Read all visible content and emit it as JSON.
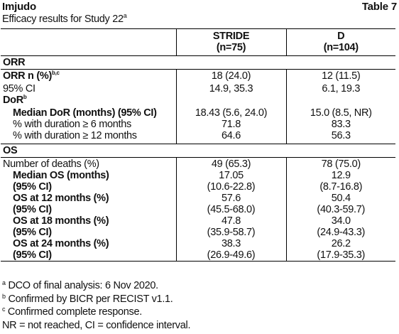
{
  "brand": "Imjudo",
  "table_label": "Table 7",
  "subtitle": "Efficacy results for Study 22",
  "subtitle_note": "a",
  "columns": [
    {
      "name": "STRIDE",
      "n": "(n=75)"
    },
    {
      "name": "D",
      "n": "(n=104)"
    }
  ],
  "sections": {
    "orr": "ORR",
    "os": "OS"
  },
  "orr_rows": {
    "orr_n": {
      "label": "ORR n (%)",
      "sup": "b,c",
      "stride": "18 (24.0)",
      "d": "12 (11.5)"
    },
    "ci": {
      "label": "95% CI",
      "stride": "14.9, 35.3",
      "d": "6.1, 19.3"
    },
    "dor": {
      "label": "DoR",
      "sup": "b"
    },
    "median_dor": {
      "label": "Median DoR (months) (95% CI)",
      "stride": "18.43 (5.6, 24.0)",
      "d": "15.0 (8.5, NR)"
    },
    "dur6": {
      "label": "% with duration ≥ 6 months",
      "stride": "71.8",
      "d": "83.3"
    },
    "dur12": {
      "label": "% with duration ≥ 12 months",
      "stride": "64.6",
      "d": "56.3"
    }
  },
  "os_rows": [
    {
      "label": "Number of deaths (%)",
      "stride": "49 (65.3)",
      "d": "78 (75.0)"
    },
    {
      "label": "Median OS (months)",
      "stride": "17.05",
      "d": "12.9"
    },
    {
      "label": "(95% CI)",
      "stride": "(10.6-22.8)",
      "d": "(8.7-16.8)"
    },
    {
      "label": "OS at 12 months (%)",
      "stride": "57.6",
      "d": "50.4"
    },
    {
      "label": "(95% CI)",
      "stride": "(45.5-68.0)",
      "d": "(40.3-59.7)"
    },
    {
      "label": "OS at 18 months (%)",
      "stride": "47.8",
      "d": "34.0"
    },
    {
      "label": "(95% CI)",
      "stride": "(35.9-58.7)",
      "d": "(24.9-43.3)"
    },
    {
      "label": "OS at 24 months (%)",
      "stride": "38.3",
      "d": "26.2"
    },
    {
      "label": "(95% CI)",
      "stride": "(26.9-49.6)",
      "d": "(17.9-35.3)"
    }
  ],
  "footnotes": [
    {
      "mark": "a",
      "text": " DCO of final analysis: 6 Nov 2020."
    },
    {
      "mark": "b",
      "text": " Confirmed by BICR per RECIST v1.1."
    },
    {
      "mark": "c",
      "text": " Confirmed complete response."
    },
    {
      "mark": "",
      "text": "NR = not reached, CI = confidence interval."
    }
  ]
}
